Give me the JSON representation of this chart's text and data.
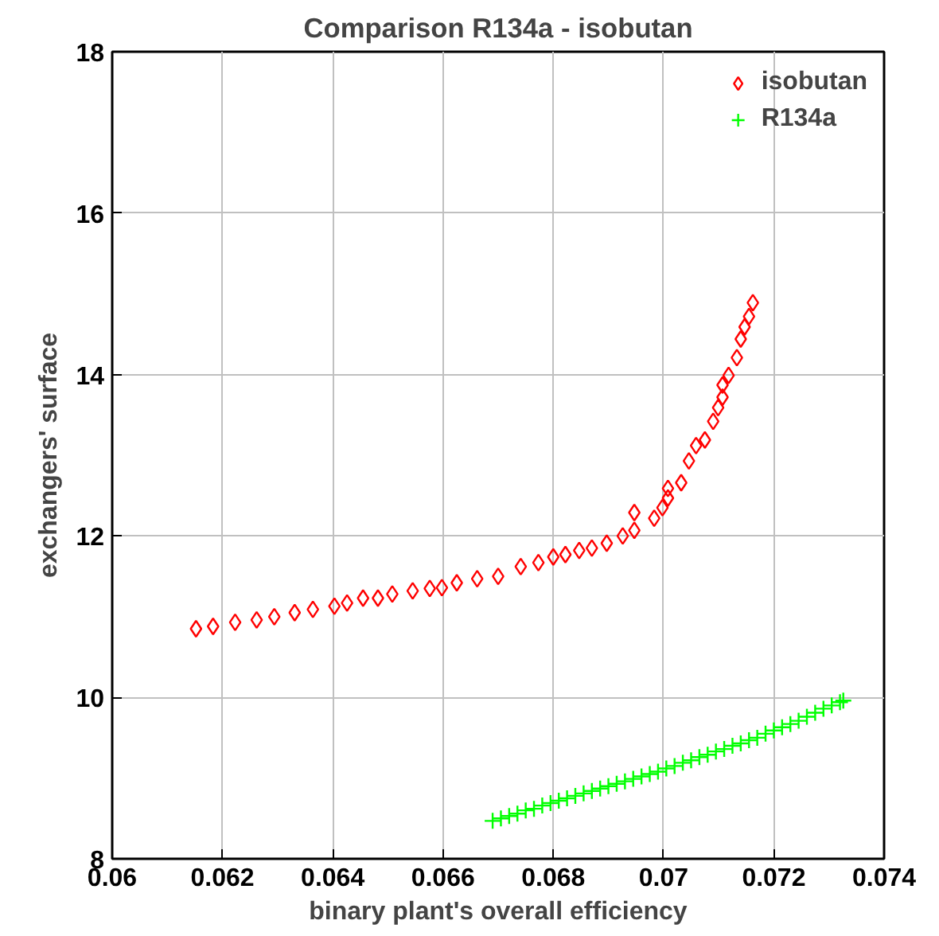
{
  "chart_data": {
    "type": "scatter",
    "title": "Comparison R134a - isobutan",
    "xlabel": "binary plant's overall efficiency",
    "ylabel": "exchangers' surface",
    "xlim": [
      0.06,
      0.074
    ],
    "xticks": [
      0.06,
      0.062,
      0.064,
      0.066,
      0.068,
      0.07,
      0.072,
      0.074
    ],
    "ylim": [
      8,
      18
    ],
    "yticks": [
      8,
      10,
      12,
      14,
      16,
      18
    ],
    "grid": true,
    "legend": "top right",
    "series": [
      {
        "name": "isobutan",
        "color": "#ff0000",
        "marker": "diamond",
        "x": [
          0.06152,
          0.06183,
          0.06223,
          0.06262,
          0.06294,
          0.06331,
          0.06364,
          0.06403,
          0.06426,
          0.06455,
          0.06482,
          0.06508,
          0.06545,
          0.06576,
          0.06598,
          0.06625,
          0.06662,
          0.067,
          0.06741,
          0.06773,
          0.068,
          0.06822,
          0.06847,
          0.0687,
          0.06897,
          0.06926,
          0.06947,
          0.06947,
          0.06983,
          0.06998,
          0.07008,
          0.07008,
          0.07032,
          0.07046,
          0.07059,
          0.07075,
          0.0709,
          0.07099,
          0.07107,
          0.07107,
          0.07118,
          0.07133,
          0.0714,
          0.07147,
          0.07155,
          0.07162
        ],
        "values": [
          10.85,
          10.88,
          10.93,
          10.96,
          11.0,
          11.05,
          11.09,
          11.13,
          11.17,
          11.23,
          11.23,
          11.28,
          11.32,
          11.35,
          11.36,
          11.42,
          11.47,
          11.5,
          11.62,
          11.67,
          11.74,
          11.77,
          11.82,
          11.85,
          11.91,
          12.0,
          12.07,
          12.29,
          12.22,
          12.35,
          12.47,
          12.59,
          12.66,
          12.93,
          13.12,
          13.19,
          13.42,
          13.59,
          13.72,
          13.87,
          13.99,
          14.21,
          14.44,
          14.59,
          14.72,
          14.89
        ]
      },
      {
        "name": "R134a",
        "color": "#00ff00",
        "marker": "cross",
        "x": [
          0.0669,
          0.06705,
          0.0672,
          0.06735,
          0.0675,
          0.06765,
          0.0678,
          0.06795,
          0.0681,
          0.06825,
          0.0684,
          0.06855,
          0.0687,
          0.06885,
          0.069,
          0.06915,
          0.0693,
          0.06945,
          0.0696,
          0.06975,
          0.0699,
          0.07005,
          0.0702,
          0.07035,
          0.0705,
          0.07065,
          0.0708,
          0.07095,
          0.0711,
          0.07125,
          0.0714,
          0.07155,
          0.0717,
          0.07185,
          0.072,
          0.07215,
          0.0723,
          0.07245,
          0.0726,
          0.07275,
          0.0729,
          0.07305,
          0.0732,
          0.07326
        ],
        "values": [
          8.47,
          8.5,
          8.53,
          8.56,
          8.6,
          8.62,
          8.66,
          8.69,
          8.72,
          8.75,
          8.78,
          8.81,
          8.84,
          8.87,
          8.9,
          8.93,
          8.96,
          8.99,
          9.02,
          9.05,
          9.08,
          9.12,
          9.15,
          9.19,
          9.22,
          9.26,
          9.29,
          9.33,
          9.36,
          9.4,
          9.43,
          9.47,
          9.5,
          9.55,
          9.59,
          9.63,
          9.67,
          9.71,
          9.76,
          9.81,
          9.86,
          9.9,
          9.94,
          9.96
        ]
      }
    ]
  }
}
